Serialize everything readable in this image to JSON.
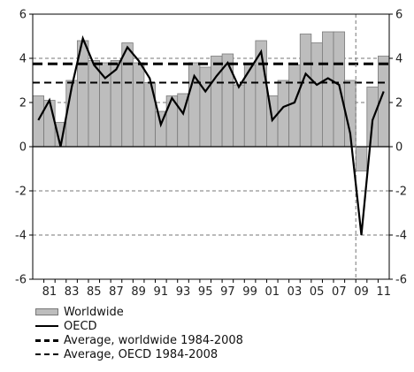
{
  "chart_data": {
    "type": "bar",
    "title": "",
    "xlabel": "",
    "ylabel": "",
    "ylim": [
      -6,
      6
    ],
    "yticks": [
      -6,
      -4,
      -2,
      0,
      2,
      4,
      6
    ],
    "y_gridlines": "dashed",
    "years": [
      1980,
      1981,
      1982,
      1983,
      1984,
      1985,
      1986,
      1987,
      1988,
      1989,
      1990,
      1991,
      1992,
      1993,
      1994,
      1995,
      1996,
      1997,
      1998,
      1999,
      2000,
      2001,
      2002,
      2003,
      2004,
      2005,
      2006,
      2007,
      2008,
      2009,
      2010,
      2011
    ],
    "tick_labels": [
      "81",
      "83",
      "85",
      "87",
      "89",
      "91",
      "93",
      "95",
      "97",
      "99",
      "01",
      "03",
      "05",
      "07",
      "09",
      "11"
    ],
    "tick_years": [
      1981,
      1983,
      1985,
      1987,
      1989,
      1991,
      1993,
      1995,
      1997,
      1999,
      2001,
      2003,
      2005,
      2007,
      2009,
      2011
    ],
    "vertical_marker_year": 2008.5,
    "series": [
      {
        "name": "Worldwide",
        "type": "bar",
        "color": "#bdbdbd",
        "values": [
          2.3,
          2.1,
          1.1,
          3.0,
          4.8,
          3.9,
          3.8,
          3.9,
          4.7,
          3.8,
          2.9,
          1.6,
          2.3,
          2.4,
          3.8,
          3.6,
          4.1,
          4.2,
          2.8,
          3.7,
          4.8,
          2.3,
          3.0,
          3.7,
          5.1,
          4.7,
          5.2,
          5.2,
          3.0,
          -1.1,
          2.7,
          4.1
        ]
      },
      {
        "name": "OECD",
        "type": "line",
        "color": "#000000",
        "values": [
          1.2,
          2.1,
          0.0,
          2.7,
          4.9,
          3.7,
          3.1,
          3.5,
          4.5,
          3.9,
          3.1,
          1.0,
          2.2,
          1.5,
          3.2,
          2.5,
          3.2,
          3.8,
          2.7,
          3.5,
          4.3,
          1.2,
          1.8,
          2.0,
          3.3,
          2.8,
          3.1,
          2.8,
          0.6,
          -4.0,
          1.2,
          2.5
        ]
      }
    ],
    "averages": [
      {
        "name": "Average, worldwide 1984-2008",
        "value": 3.75,
        "style": "dashed-thick"
      },
      {
        "name": "Average, OECD 1984-2008",
        "value": 2.9,
        "style": "dashed-thin"
      }
    ]
  },
  "legend": {
    "items": [
      "Worldwide",
      "OECD",
      "Average, worldwide 1984-2008",
      "Average, OECD 1984-2008"
    ]
  }
}
